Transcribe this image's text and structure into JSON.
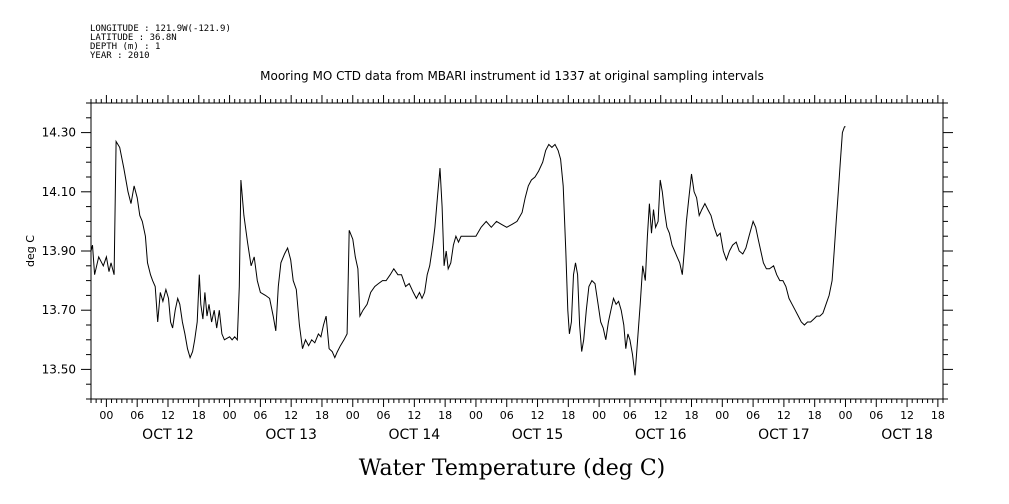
{
  "meta_lines": [
    "LONGITUDE : 121.9W(-121.9)",
    "LATITUDE : 36.8N",
    "DEPTH (m) : 1",
    "YEAR : 2010"
  ],
  "chart_data": {
    "type": "line",
    "title": "Mooring MO CTD data from MBARI instrument id 1337 at original sampling intervals",
    "xlabel": "Water Temperature (deg C)",
    "ylabel": "deg C",
    "x_unit": "hours (2010-10-11 21:00 to 2010-10-18 19:00)",
    "xlim": [
      -3,
      163
    ],
    "ylim": [
      13.4,
      14.4
    ],
    "yticks": [
      13.5,
      13.7,
      13.9,
      14.1,
      14.3
    ],
    "ytick_labels": [
      "13.50",
      "13.70",
      "13.90",
      "14.10",
      "14.30"
    ],
    "hour_ticks": [
      0,
      6,
      12,
      18,
      24,
      30,
      36,
      42,
      48,
      54,
      60,
      66,
      72,
      78,
      84,
      90,
      96,
      102,
      108,
      114,
      120,
      126,
      132,
      138,
      144,
      150,
      156,
      162
    ],
    "hour_labels": [
      "00",
      "06",
      "12",
      "18",
      "00",
      "06",
      "12",
      "18",
      "00",
      "06",
      "12",
      "18",
      "00",
      "06",
      "12",
      "18",
      "00",
      "06",
      "12",
      "18",
      "00",
      "06",
      "12",
      "18",
      "00",
      "06",
      "12",
      "18"
    ],
    "day_labels": [
      {
        "label": "OCT 12",
        "x": 12
      },
      {
        "label": "OCT 13",
        "x": 36
      },
      {
        "label": "OCT 14",
        "x": 60
      },
      {
        "label": "OCT 15",
        "x": 84
      },
      {
        "label": "OCT 16",
        "x": 108
      },
      {
        "label": "OCT 17",
        "x": 132
      },
      {
        "label": "OCT 18",
        "x": 156
      }
    ],
    "grid": false,
    "series": [
      {
        "points": [
          [
            -3,
            13.9
          ],
          [
            -2.7,
            13.92
          ],
          [
            -2.3,
            13.82
          ],
          [
            -1.5,
            13.88
          ],
          [
            -0.6,
            13.85
          ],
          [
            0,
            13.88
          ],
          [
            0.5,
            13.83
          ],
          [
            0.9,
            13.86
          ],
          [
            1.5,
            13.82
          ],
          [
            1.9,
            14.27
          ],
          [
            2.6,
            14.25
          ],
          [
            3.4,
            14.18
          ],
          [
            4.2,
            14.1
          ],
          [
            4.8,
            14.06
          ],
          [
            5.4,
            14.12
          ],
          [
            6.0,
            14.08
          ],
          [
            6.5,
            14.02
          ],
          [
            7.0,
            14.0
          ],
          [
            7.6,
            13.95
          ],
          [
            8.0,
            13.86
          ],
          [
            8.6,
            13.82
          ],
          [
            9.0,
            13.8
          ],
          [
            9.5,
            13.78
          ],
          [
            10.0,
            13.66
          ],
          [
            10.5,
            13.76
          ],
          [
            11.0,
            13.73
          ],
          [
            11.6,
            13.77
          ],
          [
            12.1,
            13.74
          ],
          [
            12.5,
            13.66
          ],
          [
            12.9,
            13.64
          ],
          [
            13.4,
            13.7
          ],
          [
            13.9,
            13.74
          ],
          [
            14.3,
            13.72
          ],
          [
            14.8,
            13.66
          ],
          [
            15.3,
            13.62
          ],
          [
            15.8,
            13.57
          ],
          [
            16.3,
            13.54
          ],
          [
            16.8,
            13.56
          ],
          [
            17.2,
            13.6
          ],
          [
            17.7,
            13.66
          ],
          [
            18.1,
            13.82
          ],
          [
            18.4,
            13.72
          ],
          [
            18.8,
            13.67
          ],
          [
            19.2,
            13.76
          ],
          [
            19.6,
            13.68
          ],
          [
            20.0,
            13.72
          ],
          [
            20.5,
            13.66
          ],
          [
            21.0,
            13.7
          ],
          [
            21.5,
            13.64
          ],
          [
            22.0,
            13.7
          ],
          [
            22.5,
            13.62
          ],
          [
            23.0,
            13.6
          ],
          [
            24.0,
            13.61
          ],
          [
            24.5,
            13.6
          ],
          [
            25.0,
            13.61
          ],
          [
            25.5,
            13.6
          ],
          [
            25.9,
            13.78
          ],
          [
            26.2,
            14.14
          ],
          [
            26.8,
            14.02
          ],
          [
            27.5,
            13.93
          ],
          [
            28.2,
            13.85
          ],
          [
            28.8,
            13.88
          ],
          [
            29.4,
            13.8
          ],
          [
            30.0,
            13.76
          ],
          [
            31.0,
            13.75
          ],
          [
            31.8,
            13.74
          ],
          [
            32.5,
            13.68
          ],
          [
            33.0,
            13.63
          ],
          [
            33.5,
            13.78
          ],
          [
            34.0,
            13.86
          ],
          [
            34.7,
            13.89
          ],
          [
            35.3,
            13.91
          ],
          [
            35.9,
            13.87
          ],
          [
            36.4,
            13.8
          ],
          [
            37.0,
            13.77
          ],
          [
            37.6,
            13.65
          ],
          [
            38.2,
            13.57
          ],
          [
            38.8,
            13.6
          ],
          [
            39.4,
            13.58
          ],
          [
            40.0,
            13.6
          ],
          [
            40.6,
            13.59
          ],
          [
            41.3,
            13.62
          ],
          [
            41.8,
            13.61
          ],
          [
            42.3,
            13.65
          ],
          [
            42.8,
            13.68
          ],
          [
            43.4,
            13.57
          ],
          [
            44.0,
            13.56
          ],
          [
            44.5,
            13.54
          ],
          [
            45.0,
            13.56
          ],
          [
            45.6,
            13.58
          ],
          [
            46.3,
            13.6
          ],
          [
            46.9,
            13.62
          ],
          [
            47.3,
            13.97
          ],
          [
            48.0,
            13.94
          ],
          [
            48.5,
            13.88
          ],
          [
            49.0,
            13.84
          ],
          [
            49.4,
            13.68
          ],
          [
            50.0,
            13.7
          ],
          [
            50.8,
            13.72
          ],
          [
            51.5,
            13.76
          ],
          [
            52.3,
            13.78
          ],
          [
            53.0,
            13.79
          ],
          [
            53.8,
            13.8
          ],
          [
            54.5,
            13.8
          ],
          [
            55.3,
            13.82
          ],
          [
            56.0,
            13.84
          ],
          [
            56.8,
            13.82
          ],
          [
            57.5,
            13.82
          ],
          [
            58.3,
            13.78
          ],
          [
            59.0,
            13.79
          ],
          [
            59.8,
            13.76
          ],
          [
            60.4,
            13.74
          ],
          [
            61.0,
            13.76
          ],
          [
            61.5,
            13.74
          ],
          [
            62.0,
            13.76
          ],
          [
            62.5,
            13.82
          ],
          [
            63.0,
            13.85
          ],
          [
            63.6,
            13.92
          ],
          [
            64.0,
            13.98
          ],
          [
            64.5,
            14.08
          ],
          [
            65.0,
            14.18
          ],
          [
            65.4,
            14.05
          ],
          [
            65.8,
            13.85
          ],
          [
            66.2,
            13.9
          ],
          [
            66.6,
            13.84
          ],
          [
            67.1,
            13.86
          ],
          [
            67.6,
            13.92
          ],
          [
            68.1,
            13.95
          ],
          [
            68.6,
            13.93
          ],
          [
            69.1,
            13.95
          ],
          [
            70.0,
            13.95
          ],
          [
            71.0,
            13.95
          ],
          [
            72.0,
            13.95
          ],
          [
            73.0,
            13.98
          ],
          [
            74.0,
            14.0
          ],
          [
            75.0,
            13.98
          ],
          [
            76.0,
            14.0
          ],
          [
            77.0,
            13.99
          ],
          [
            78.0,
            13.98
          ],
          [
            79.0,
            13.99
          ],
          [
            80.0,
            14.0
          ],
          [
            81.0,
            14.03
          ],
          [
            81.6,
            14.08
          ],
          [
            82.2,
            14.12
          ],
          [
            82.8,
            14.14
          ],
          [
            83.5,
            14.15
          ],
          [
            84.2,
            14.17
          ],
          [
            85.0,
            14.2
          ],
          [
            85.6,
            14.24
          ],
          [
            86.2,
            14.26
          ],
          [
            86.8,
            14.25
          ],
          [
            87.4,
            14.26
          ],
          [
            88.0,
            14.24
          ],
          [
            88.5,
            14.21
          ],
          [
            89.0,
            14.12
          ],
          [
            89.5,
            13.9
          ],
          [
            89.9,
            13.7
          ],
          [
            90.2,
            13.62
          ],
          [
            90.6,
            13.66
          ],
          [
            91.0,
            13.82
          ],
          [
            91.4,
            13.86
          ],
          [
            91.8,
            13.82
          ],
          [
            92.2,
            13.65
          ],
          [
            92.6,
            13.56
          ],
          [
            93.0,
            13.6
          ],
          [
            93.5,
            13.7
          ],
          [
            94.0,
            13.78
          ],
          [
            94.6,
            13.8
          ],
          [
            95.2,
            13.79
          ],
          [
            95.8,
            13.72
          ],
          [
            96.3,
            13.66
          ],
          [
            96.8,
            13.64
          ],
          [
            97.3,
            13.6
          ],
          [
            97.8,
            13.66
          ],
          [
            98.3,
            13.7
          ],
          [
            98.8,
            13.74
          ],
          [
            99.3,
            13.72
          ],
          [
            99.8,
            13.73
          ],
          [
            100.3,
            13.7
          ],
          [
            100.8,
            13.65
          ],
          [
            101.2,
            13.57
          ],
          [
            101.6,
            13.62
          ],
          [
            102.0,
            13.6
          ],
          [
            102.5,
            13.55
          ],
          [
            103.0,
            13.48
          ],
          [
            103.5,
            13.6
          ],
          [
            104.0,
            13.72
          ],
          [
            104.5,
            13.85
          ],
          [
            105.0,
            13.8
          ],
          [
            105.4,
            13.95
          ],
          [
            105.8,
            14.06
          ],
          [
            106.2,
            13.96
          ],
          [
            106.6,
            14.04
          ],
          [
            107.0,
            13.98
          ],
          [
            107.5,
            14.0
          ],
          [
            107.9,
            14.14
          ],
          [
            108.3,
            14.1
          ],
          [
            108.7,
            14.04
          ],
          [
            109.2,
            13.98
          ],
          [
            109.7,
            13.96
          ],
          [
            110.2,
            13.92
          ],
          [
            110.7,
            13.9
          ],
          [
            111.2,
            13.88
          ],
          [
            111.7,
            13.86
          ],
          [
            112.2,
            13.82
          ],
          [
            112.6,
            13.9
          ],
          [
            113.0,
            14.0
          ],
          [
            113.5,
            14.08
          ],
          [
            114.0,
            14.16
          ],
          [
            114.5,
            14.1
          ],
          [
            115.0,
            14.08
          ],
          [
            115.5,
            14.02
          ],
          [
            116.0,
            14.04
          ],
          [
            116.6,
            14.06
          ],
          [
            117.2,
            14.04
          ],
          [
            117.8,
            14.02
          ],
          [
            118.4,
            13.98
          ],
          [
            119.0,
            13.95
          ],
          [
            119.6,
            13.96
          ],
          [
            120.2,
            13.9
          ],
          [
            120.8,
            13.87
          ],
          [
            121.4,
            13.9
          ],
          [
            122.0,
            13.92
          ],
          [
            122.7,
            13.93
          ],
          [
            123.3,
            13.9
          ],
          [
            124.0,
            13.89
          ],
          [
            124.6,
            13.91
          ],
          [
            125.2,
            13.95
          ],
          [
            126.0,
            14.0
          ],
          [
            126.5,
            13.98
          ],
          [
            127.0,
            13.94
          ],
          [
            127.5,
            13.9
          ],
          [
            128.0,
            13.86
          ],
          [
            128.6,
            13.84
          ],
          [
            129.2,
            13.84
          ],
          [
            130.0,
            13.85
          ],
          [
            130.6,
            13.82
          ],
          [
            131.2,
            13.8
          ],
          [
            131.8,
            13.8
          ],
          [
            132.4,
            13.78
          ],
          [
            133.0,
            13.74
          ],
          [
            133.6,
            13.72
          ],
          [
            134.2,
            13.7
          ],
          [
            134.8,
            13.68
          ],
          [
            135.4,
            13.66
          ],
          [
            136.0,
            13.65
          ],
          [
            136.6,
            13.66
          ],
          [
            137.2,
            13.66
          ],
          [
            137.8,
            13.67
          ],
          [
            138.4,
            13.68
          ],
          [
            139.0,
            13.68
          ],
          [
            139.6,
            13.69
          ],
          [
            140.2,
            13.72
          ],
          [
            140.8,
            13.75
          ],
          [
            141.4,
            13.8
          ],
          [
            141.8,
            13.9
          ],
          [
            142.2,
            14.0
          ],
          [
            142.6,
            14.1
          ],
          [
            143.0,
            14.2
          ],
          [
            143.4,
            14.3
          ],
          [
            143.8,
            14.32
          ],
          [
            144.0,
            14.32
          ]
        ]
      }
    ]
  }
}
